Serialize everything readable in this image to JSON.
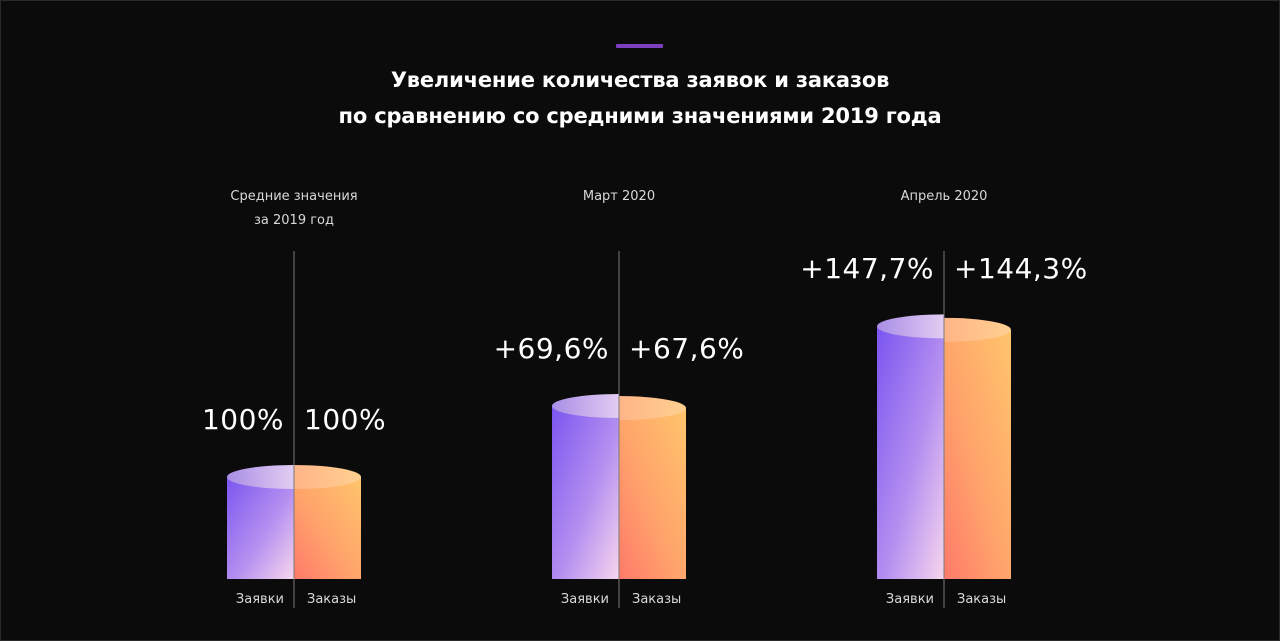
{
  "title_line1": "Увеличение количества заявок и заказов",
  "title_line2": "по сравнению со средними значениями 2019 года",
  "chart_data": {
    "type": "bar",
    "title": "Увеличение количества заявок и заказов по сравнению со средними значениями 2019 года",
    "groups": [
      {
        "label_line1": "Средние значения",
        "label_line2": "за 2019 год",
        "left_label": "100%",
        "right_label": "100%",
        "left_value": 100,
        "right_value": 100,
        "left_category": "Заявки",
        "right_category": "Заказы"
      },
      {
        "label_line1": "Март 2020",
        "label_line2": "",
        "left_label": "+69,6%",
        "right_label": "+67,6%",
        "left_value": 169.6,
        "right_value": 167.6,
        "left_category": "Заявки",
        "right_category": "Заказы"
      },
      {
        "label_line1": "Апрель 2020",
        "label_line2": "",
        "left_label": "+147,7%",
        "right_label": "+144,3%",
        "left_value": 247.7,
        "right_value": 244.3,
        "left_category": "Заявки",
        "right_category": "Заказы"
      }
    ],
    "series": [
      {
        "name": "Заявки",
        "values": [
          100,
          169.6,
          247.7
        ]
      },
      {
        "name": "Заказы",
        "values": [
          100,
          167.6,
          244.3
        ]
      }
    ],
    "colors": {
      "left_top": "#7a55f0",
      "left_bottom": "#f6d6ee",
      "right_top": "#ffc56b",
      "right_bottom": "#ff7a6a",
      "accent": "#7b3fbf"
    }
  }
}
